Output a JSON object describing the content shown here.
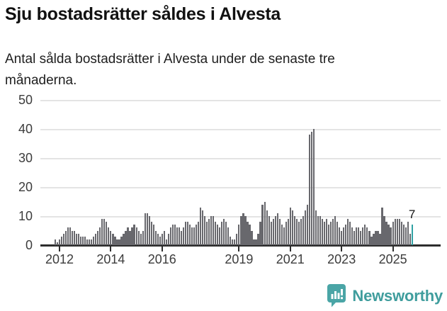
{
  "chart_data": {
    "type": "bar",
    "title": "Sju bostadsrätter såldes i Alvesta",
    "subtitle_lines": [
      "Antal sålda bostadsrätter i Alvesta under de senaste tre",
      "månaderna."
    ],
    "frequency": "monthly",
    "x_start": "2011-11",
    "x_end": "2025-10",
    "xlabel": "",
    "ylabel": "",
    "ylim": [
      0,
      50
    ],
    "grid": "horizontal",
    "legend": "none",
    "y_ticks": [
      0,
      10,
      20,
      30,
      40,
      50
    ],
    "x_tick_years": [
      2012,
      2014,
      2016,
      2019,
      2021,
      2023,
      2025
    ],
    "values": [
      2,
      1,
      2,
      3,
      4,
      5,
      6,
      6,
      5,
      5,
      4,
      4,
      3,
      3,
      3,
      2,
      2,
      2,
      3,
      4,
      5,
      6,
      9,
      9,
      8,
      6,
      5,
      4,
      3,
      2,
      2,
      3,
      4,
      5,
      6,
      5,
      6,
      7,
      6,
      5,
      4,
      5,
      11,
      11,
      10,
      8,
      7,
      5,
      4,
      3,
      4,
      5,
      2,
      4,
      6,
      7,
      7,
      6,
      6,
      5,
      6,
      8,
      8,
      7,
      6,
      6,
      7,
      8,
      13,
      12,
      10,
      8,
      9,
      10,
      10,
      8,
      7,
      6,
      8,
      9,
      8,
      6,
      3,
      2,
      2,
      4,
      7,
      10,
      11,
      10,
      8,
      7,
      5,
      2,
      2,
      4,
      8,
      14,
      15,
      12,
      10,
      8,
      9,
      10,
      11,
      9,
      7,
      6,
      8,
      9,
      13,
      12,
      10,
      9,
      8,
      9,
      10,
      12,
      14,
      38,
      39,
      40,
      12,
      10,
      10,
      9,
      8,
      9,
      7,
      8,
      9,
      10,
      8,
      6,
      5,
      6,
      7,
      9,
      8,
      6,
      5,
      6,
      6,
      5,
      6,
      7,
      6,
      5,
      3,
      4,
      5,
      5,
      4,
      13,
      10,
      8,
      7,
      6,
      8,
      9,
      9,
      9,
      8,
      7,
      6,
      8,
      4,
      7
    ],
    "highlight_last_bar": true,
    "last_value_annotation": "7",
    "last_value": 7,
    "colors": {
      "bar": "#68686d",
      "highlight": "#30a2a4",
      "grid": "#e4e4e4",
      "axis": "#2d2d2d",
      "tick_label": "#3c3c3c"
    }
  },
  "footer": {
    "brand": "Newsworthy",
    "brand_color": "#3f9d9d",
    "logo_icon": "chart-speech-bubble-icon",
    "logo_color": "#4aa5a6"
  }
}
